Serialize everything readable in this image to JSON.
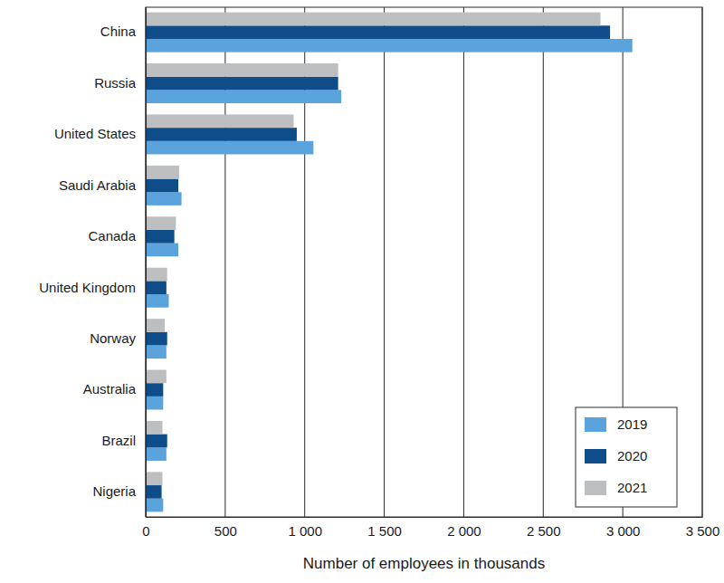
{
  "chart_data": {
    "type": "bar",
    "orientation": "horizontal",
    "x_label": "Number of employees in thousands",
    "categories": [
      "China",
      "Russia",
      "United States",
      "Saudi Arabia",
      "Canada",
      "United Kingdom",
      "Norway",
      "Australia",
      "Brazil",
      "Nigeria"
    ],
    "series": [
      {
        "name": "2019",
        "color": "#5ba3dc",
        "values": [
          3060,
          1230,
          1055,
          225,
          205,
          145,
          130,
          110,
          130,
          110
        ]
      },
      {
        "name": "2020",
        "color": "#0f4c8a",
        "values": [
          2920,
          1210,
          950,
          205,
          180,
          130,
          135,
          110,
          135,
          100
        ]
      },
      {
        "name": "2021",
        "color": "#bcbec0",
        "values": [
          2860,
          1210,
          930,
          210,
          190,
          135,
          120,
          130,
          105,
          105
        ]
      }
    ],
    "xlim": [
      0,
      3500
    ],
    "xticks": [
      0,
      500,
      {
        "value": 1000,
        "label": "1 000"
      },
      {
        "value": 1500,
        "label": "1 500"
      },
      {
        "value": 2000,
        "label": "2 000"
      },
      {
        "value": 2500,
        "label": "2 500"
      },
      {
        "value": 3000,
        "label": "3 000"
      },
      {
        "value": 3500,
        "label": "3 500"
      }
    ],
    "grid": true,
    "legend": "lower right"
  }
}
